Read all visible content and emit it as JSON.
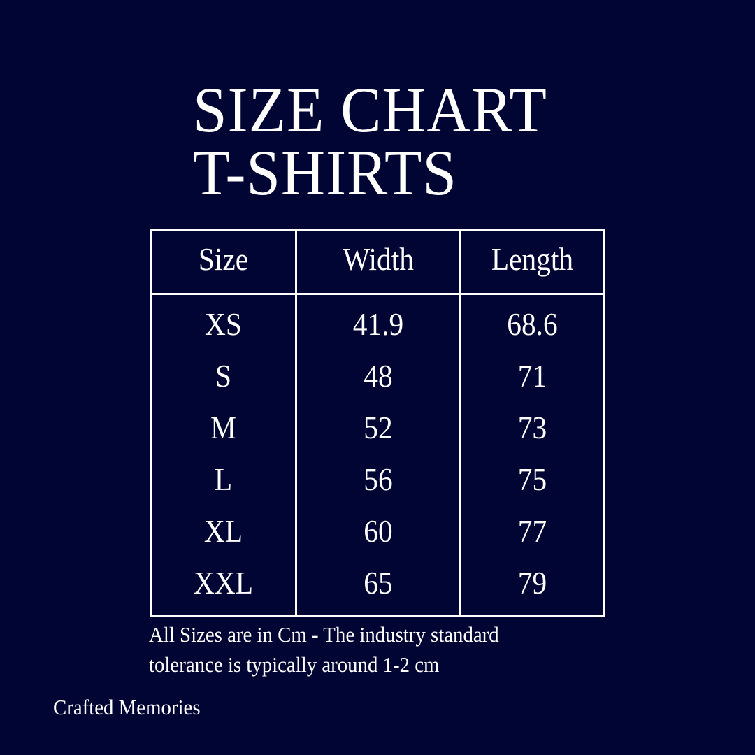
{
  "title": {
    "line1": "SIZE CHART",
    "line2": "T-SHIRTS"
  },
  "colors": {
    "background": "#000533",
    "foreground": "#ffffff"
  },
  "table": {
    "headers": [
      "Size",
      "Width",
      "Length"
    ],
    "rows": [
      [
        "XS",
        "41.9",
        "68.6"
      ],
      [
        "S",
        "48",
        "71"
      ],
      [
        "M",
        "52",
        "73"
      ],
      [
        "L",
        "56",
        "75"
      ],
      [
        "XL",
        "60",
        "77"
      ],
      [
        "XXL",
        "65",
        "79"
      ]
    ]
  },
  "note": {
    "line1": "All Sizes are in Cm - The industry standard",
    "line2": "tolerance is typically around 1-2 cm"
  },
  "brand": "Crafted Memories"
}
